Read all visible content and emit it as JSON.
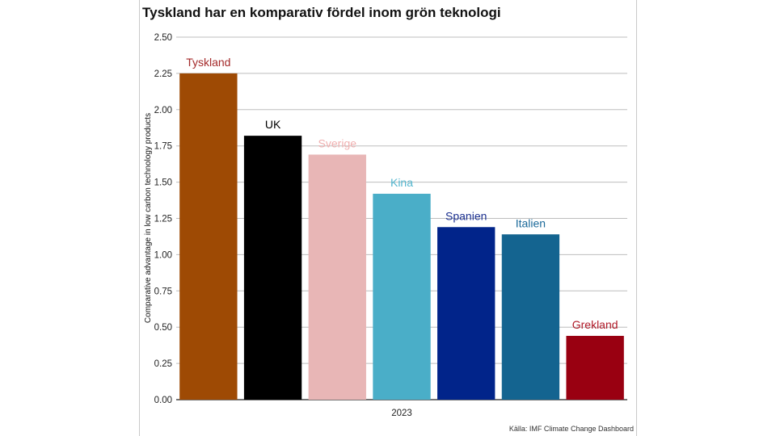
{
  "chart_data": {
    "type": "bar",
    "title": "Tyskland har en komparativ fördel inom grön teknologi",
    "ylabel": "Comparative advantage in low carbon technology products",
    "xlabel": "2023",
    "ylim": [
      0,
      2.5
    ],
    "yticks": [
      "0.00",
      "0.25",
      "0.50",
      "0.75",
      "1.00",
      "1.25",
      "1.50",
      "1.75",
      "2.00",
      "2.25",
      "2.50"
    ],
    "grid": true,
    "categories": [
      "Tyskland",
      "UK",
      "Sverige",
      "Kina",
      "Spanien",
      "Italien",
      "Grekland"
    ],
    "values": [
      2.25,
      1.82,
      1.69,
      1.42,
      1.19,
      1.14,
      0.44
    ],
    "colors": [
      "#9e4a04",
      "#000000",
      "#e8b6b6",
      "#4aaec8",
      "#01248a",
      "#146490",
      "#990011"
    ],
    "label_colors": [
      "#a42a2a",
      "#000000",
      "#f0b0b0",
      "#55b7cf",
      "#1a2f8f",
      "#1c6a9a",
      "#b01a28"
    ],
    "source": "Källa: IMF Climate Change Dashboard"
  }
}
